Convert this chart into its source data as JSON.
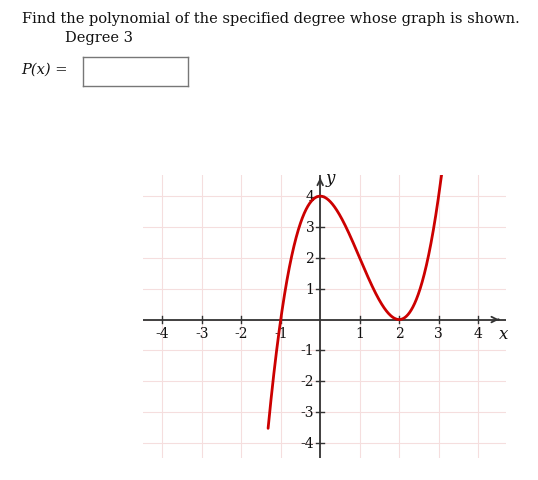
{
  "title_text": "Find the polynomial of the specified degree whose graph is shown.",
  "degree_text": "Degree 3",
  "px_label": "P(x) =",
  "curve_color": "#cc0000",
  "curve_linewidth": 2.0,
  "xlim": [
    -4.5,
    4.7
  ],
  "ylim": [
    -4.5,
    4.7
  ],
  "xticks": [
    -4,
    -3,
    -2,
    -1,
    1,
    2,
    3,
    4
  ],
  "yticks": [
    -4,
    -3,
    -2,
    -1,
    1,
    2,
    3,
    4
  ],
  "xlabel": "x",
  "ylabel": "y",
  "grid_color": "#f5dede",
  "axis_color": "#333333",
  "background_color": "#ffffff",
  "x_plot_min": -1.32,
  "x_plot_max": 3.45,
  "polynomial_roots": [
    -1,
    2,
    2
  ],
  "leading_coeff": 1,
  "title_fontsize": 10.5,
  "degree_fontsize": 10.5,
  "label_fontsize": 10.5,
  "tick_fontsize": 10,
  "axis_label_fontsize": 12
}
